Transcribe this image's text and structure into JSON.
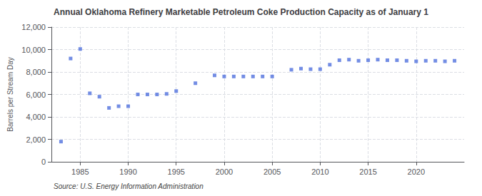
{
  "chart_data": {
    "type": "scatter",
    "title": "Annual Oklahoma Refinery Marketable Petroleum Coke Production Capacity as of January 1",
    "ylabel": "Barrels per Stream Day",
    "source": "Source: U.S. Energy Information Administration",
    "marker": "square",
    "x": [
      1983,
      1984,
      1985,
      1986,
      1987,
      1988,
      1989,
      1990,
      1991,
      1992,
      1993,
      1994,
      1995,
      1997,
      1999,
      2000,
      2001,
      2002,
      2003,
      2004,
      2005,
      2007,
      2008,
      2009,
      2010,
      2011,
      2012,
      2013,
      2014,
      2015,
      2016,
      2017,
      2018,
      2019,
      2020,
      2021,
      2022,
      2023,
      2024
    ],
    "values": [
      1800,
      9200,
      10050,
      6100,
      5800,
      4800,
      4950,
      4950,
      6000,
      6000,
      6000,
      6050,
      6300,
      7000,
      7700,
      7600,
      7600,
      7600,
      7600,
      7600,
      7600,
      8200,
      8300,
      8250,
      8250,
      8650,
      9050,
      9100,
      9000,
      9050,
      9100,
      9050,
      9050,
      9000,
      8950,
      9000,
      9000,
      8950,
      9000
    ],
    "xlim": [
      1982,
      2025
    ],
    "xticks": [
      1985,
      1990,
      1995,
      2000,
      2005,
      2010,
      2015,
      2020
    ],
    "ylim": [
      0,
      12000
    ],
    "yticks": [
      0,
      {
        "value": 2000,
        "label": "2,000"
      },
      {
        "value": 4000,
        "label": "4,000"
      },
      {
        "value": 6000,
        "label": "6,000"
      },
      {
        "value": 8000,
        "label": "8,000"
      },
      {
        "value": 10000,
        "label": "10,000"
      },
      {
        "value": 12000,
        "label": "12,000"
      }
    ],
    "grid": true
  }
}
